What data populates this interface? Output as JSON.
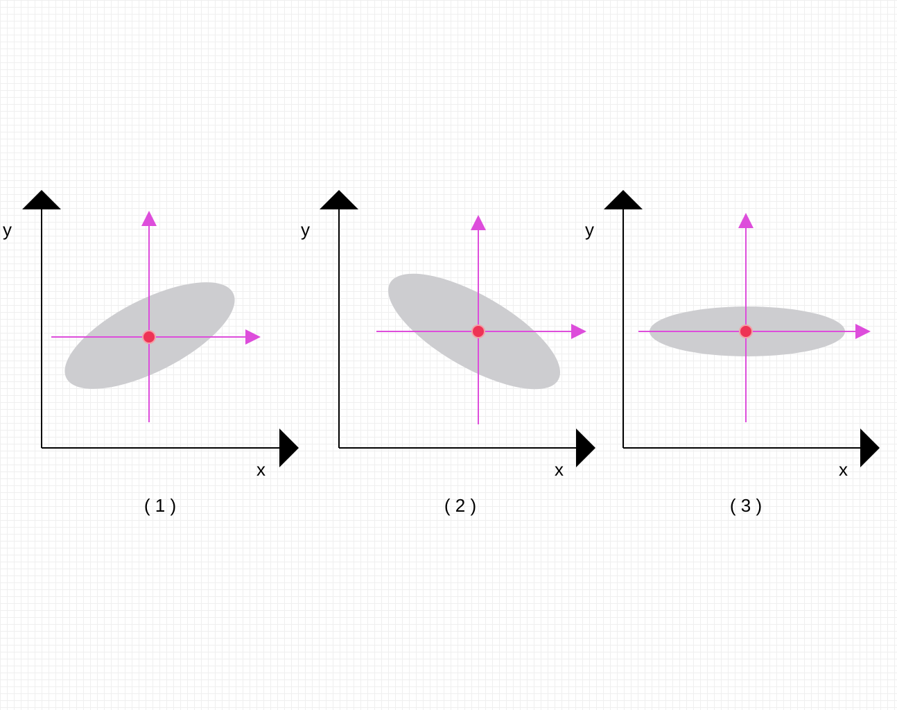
{
  "colors": {
    "axis": "#000000",
    "ellipse": "#cdcdd0",
    "pca_axis": "#dd4ddb",
    "center_point": "#ee3355",
    "center_point_stroke": "#f3a0a8"
  },
  "panels": [
    {
      "caption": "( 1 )",
      "x_label": "x",
      "y_label": "y",
      "shape": "ellipse tilted up-right"
    },
    {
      "caption": "( 2 )",
      "x_label": "x",
      "y_label": "y",
      "shape": "ellipse tilted down-right"
    },
    {
      "caption": "( 3 )",
      "x_label": "x",
      "y_label": "y",
      "shape": "horizontal ellipse"
    }
  ]
}
